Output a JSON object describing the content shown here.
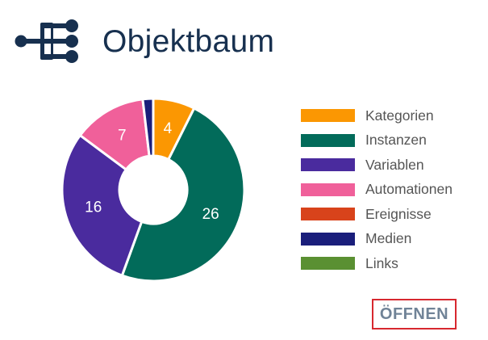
{
  "header": {
    "title": "Objektbaum",
    "icon": "tree-structure-icon",
    "icon_color": "#17304f"
  },
  "chart_data": {
    "type": "pie",
    "categories": [
      "Kategorien",
      "Instanzen",
      "Variablen",
      "Automationen",
      "Ereignisse",
      "Medien",
      "Links"
    ],
    "values": [
      4,
      26,
      16,
      7,
      0,
      1,
      0
    ],
    "data_labels": [
      "4",
      "26",
      "16",
      "7",
      "",
      "",
      ""
    ],
    "colors": [
      "#fb9702",
      "#026b5a",
      "#4a2b9e",
      "#f0609a",
      "#d8431b",
      "#1a1e7b",
      "#5a9032"
    ],
    "donut": true,
    "legend": "right"
  },
  "footer": {
    "open_label": "ÖFFNEN",
    "open_highlight_color": "#d7282f"
  }
}
